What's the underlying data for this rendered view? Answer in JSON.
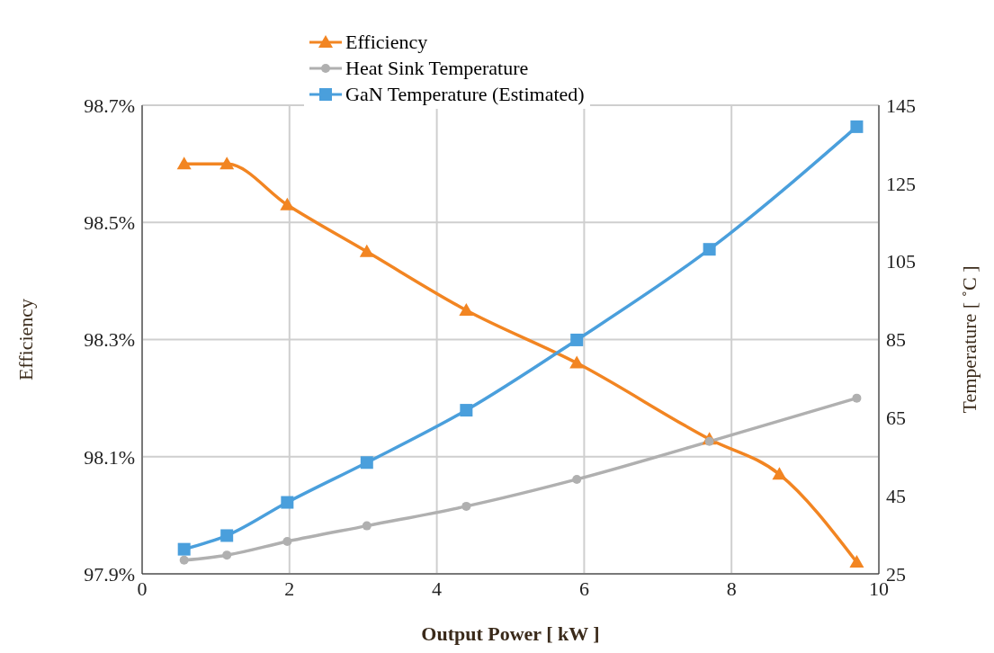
{
  "chart_data": {
    "type": "line",
    "xlabel": "Output Power [ kW ]",
    "ylabel": "Efficiency",
    "y2label": "Temperature [ ˚C ]",
    "xlim": [
      0,
      10
    ],
    "xticks": [
      0,
      2,
      4,
      6,
      8,
      10
    ],
    "ylim": [
      97.9,
      98.7
    ],
    "yticks": [
      {
        "value": 97.9,
        "label": "97.9%"
      },
      {
        "value": 98.1,
        "label": "98.1%"
      },
      {
        "value": 98.3,
        "label": "98.3%"
      },
      {
        "value": 98.5,
        "label": "98.5%"
      },
      {
        "value": 98.7,
        "label": "98.7%"
      }
    ],
    "y2lim": [
      25,
      145
    ],
    "y2ticks": [
      25,
      45,
      65,
      85,
      105,
      125,
      145
    ],
    "grid": true,
    "legend": "top",
    "line_style": "solid",
    "series": [
      {
        "name": "Efficiency",
        "color": "#f28522",
        "marker": "triangle",
        "x": [
          0.57,
          1.15,
          1.97,
          3.05,
          4.4,
          5.9,
          7.7,
          8.65,
          9.7
        ],
        "values": [
          98.6,
          98.6,
          98.53,
          98.45,
          98.35,
          98.26,
          98.13,
          98.07,
          97.92
        ]
      },
      {
        "name": "Heat Sink Temperature",
        "color": "#b0b0b0",
        "marker": "circle",
        "axis": "y2",
        "x": [
          0.57,
          1.15,
          1.97,
          3.05,
          4.4,
          5.9,
          7.7,
          9.7
        ],
        "values": [
          28.5,
          29.8,
          33.3,
          37.3,
          42.3,
          49.2,
          58.9,
          70
        ]
      },
      {
        "name": "GaN Temperature (Estimated)",
        "color": "#4a9fdc",
        "marker": "square",
        "axis": "y2",
        "x": [
          0.57,
          1.15,
          1.97,
          3.05,
          4.4,
          5.9,
          7.7,
          9.7
        ],
        "values": [
          31.3,
          34.8,
          43.3,
          53.5,
          66.9,
          84.9,
          108.1,
          139.5
        ]
      }
    ]
  }
}
